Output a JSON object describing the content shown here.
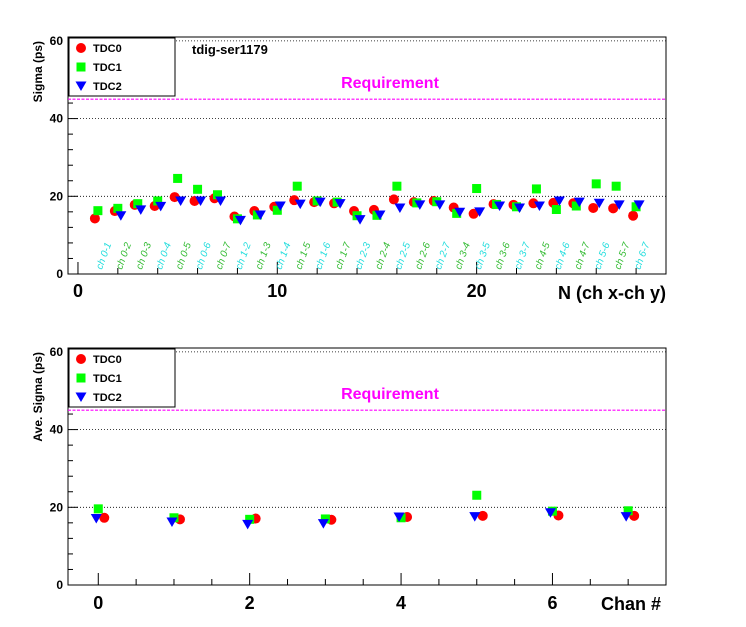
{
  "charts": [
    {
      "ylabel": "Sigma (ps)",
      "xlabel": "N (ch x-ch y)",
      "annotation": "tdig-ser1179",
      "requirement_label": "Requirement",
      "legend": [
        "TDC0",
        "TDC1",
        "TDC2"
      ]
    },
    {
      "ylabel": "Ave. Sigma (ps)",
      "xlabel": "Chan #",
      "requirement_label": "Requirement",
      "legend": [
        "TDC0",
        "TDC1",
        "TDC2"
      ]
    }
  ],
  "colors": {
    "TDC0": "#ff0000",
    "TDC1": "#00ff00",
    "TDC2": "#0000ff",
    "requirement": "#ff00ff",
    "label_green": "#33bb33",
    "label_cyan": "#22dddd"
  },
  "chart_data": [
    {
      "type": "scatter",
      "x": [
        1,
        2,
        3,
        4,
        5,
        6,
        7,
        8,
        9,
        10,
        11,
        12,
        13,
        14,
        15,
        16,
        17,
        18,
        19,
        20,
        21,
        22,
        23,
        24,
        25,
        26,
        27,
        28,
        29
      ],
      "xlim": [
        -0.5,
        29.5
      ],
      "ylim": [
        0,
        61
      ],
      "xticks": [
        0,
        10,
        20
      ],
      "yticks": [
        0,
        20,
        40,
        60
      ],
      "requirement": 45,
      "grid": "y dotted",
      "legend_position": "top-left",
      "channel_labels": [
        "ch 0-1",
        "ch 0-2",
        "ch 0-3",
        "ch 0-4",
        "ch 0-5",
        "ch 0-6",
        "ch 0-7",
        "ch 1-2",
        "ch 1-3",
        "ch 1-4",
        "ch 1-5",
        "ch 1-6",
        "ch 1-7",
        "ch 2-3",
        "ch 2-4",
        "ch 2-5",
        "ch 2-6",
        "ch 2-7",
        "ch 3-4",
        "ch 3-5",
        "ch 3-6",
        "ch 3-7",
        "ch 4-5",
        "ch 4-6",
        "ch 4-7",
        "ch 5-6",
        "ch 5-7",
        "ch 6-7"
      ],
      "channel_label_colors": [
        "cyan",
        "green",
        "green",
        "cyan",
        "green",
        "cyan",
        "green",
        "cyan",
        "green",
        "cyan",
        "green",
        "cyan",
        "green",
        "cyan",
        "green",
        "cyan",
        "green",
        "cyan",
        "green",
        "cyan",
        "green",
        "cyan",
        "green",
        "cyan",
        "green",
        "cyan",
        "green",
        "cyan"
      ],
      "series": [
        {
          "name": "TDC0",
          "marker": "circle",
          "values": [
            14.3,
            16.2,
            17.8,
            17.5,
            19.8,
            18.8,
            19.5,
            14.8,
            16.2,
            17.3,
            19.0,
            18.5,
            18.2,
            16.2,
            16.5,
            19.2,
            18.5,
            18.8,
            17.1,
            15.5,
            18.0,
            17.8,
            18.2,
            18.3,
            18.2,
            17.0,
            16.9,
            15.0,
            null
          ]
        },
        {
          "name": "TDC1",
          "marker": "square",
          "values": [
            16.3,
            16.9,
            18.1,
            18.8,
            24.6,
            21.8,
            20.4,
            14.2,
            15.2,
            16.4,
            22.6,
            18.8,
            18.5,
            15.0,
            15.1,
            22.6,
            18.3,
            18.6,
            15.6,
            22.0,
            17.9,
            17.3,
            21.9,
            16.6,
            17.5,
            23.2,
            22.6,
            17.3,
            null
          ]
        },
        {
          "name": "TDC2",
          "marker": "triangle",
          "values": [
            null,
            15.0,
            16.5,
            17.4,
            18.8,
            18.8,
            18.8,
            13.8,
            15.2,
            17.5,
            18.0,
            18.5,
            18.1,
            14.0,
            15.2,
            17.0,
            17.8,
            17.8,
            15.9,
            16.0,
            17.5,
            17.0,
            17.5,
            18.8,
            18.5,
            18.2,
            17.8,
            17.8,
            null
          ]
        }
      ]
    },
    {
      "type": "scatter",
      "x": [
        0,
        1,
        2,
        3,
        4,
        5,
        6,
        7
      ],
      "xlim": [
        -0.4,
        7.5
      ],
      "ylim": [
        0,
        61
      ],
      "xticks": [
        0,
        2,
        4,
        6
      ],
      "yticks": [
        0,
        20,
        40,
        60
      ],
      "requirement": 45,
      "grid": "y dotted",
      "legend_position": "top-left",
      "series": [
        {
          "name": "TDC0",
          "marker": "circle",
          "values": [
            17.3,
            16.9,
            17.1,
            16.8,
            17.5,
            17.8,
            17.9,
            17.8
          ]
        },
        {
          "name": "TDC1",
          "marker": "square",
          "values": [
            19.6,
            17.3,
            16.9,
            17.0,
            17.3,
            23.1,
            19.0,
            19.1
          ]
        },
        {
          "name": "TDC2",
          "marker": "triangle",
          "values": [
            17.1,
            16.2,
            15.6,
            15.8,
            17.5,
            17.6,
            18.6,
            17.6
          ]
        }
      ]
    }
  ]
}
